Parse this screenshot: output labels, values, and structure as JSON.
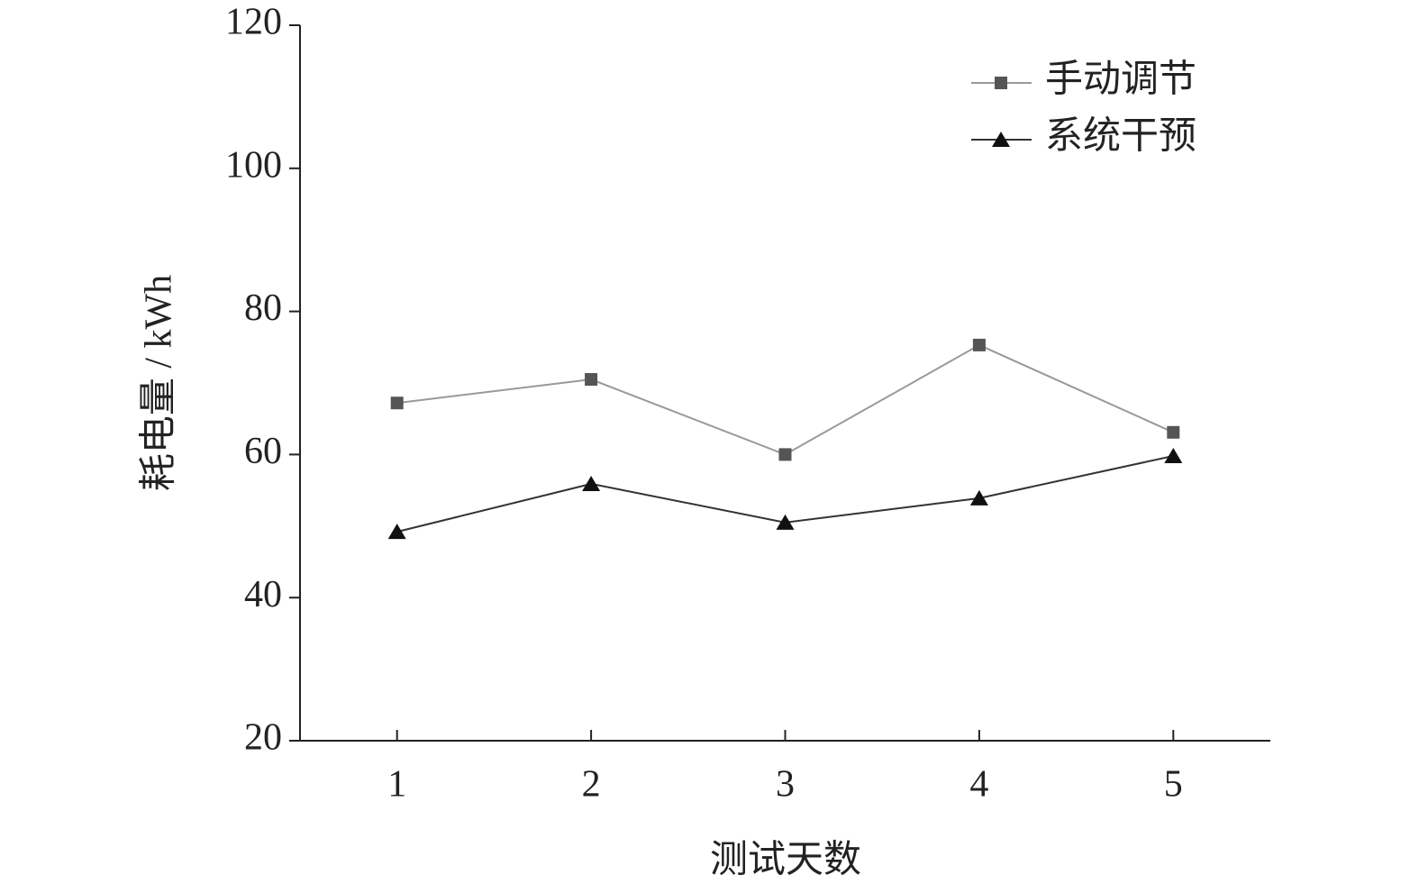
{
  "chart_data": {
    "type": "line",
    "x_label": "测试天数",
    "y_label": "耗电量 / kWh",
    "x": [
      1,
      2,
      3,
      4,
      5
    ],
    "xlim": [
      0.5,
      5.5
    ],
    "xticks": [
      1,
      2,
      3,
      4,
      5
    ],
    "ylim": [
      20,
      120
    ],
    "yticks": [
      20,
      40,
      60,
      80,
      100,
      120
    ],
    "legend": "upper right",
    "series": [
      {
        "name": "手动调节",
        "color": "#999999",
        "marker": "square",
        "marker_color": "#555555",
        "values": [
          67.2,
          70.5,
          60,
          75.3,
          63.1
        ]
      },
      {
        "name": "系统干预",
        "color": "#333333",
        "marker": "triangle",
        "marker_color": "#111111",
        "values": [
          49.2,
          55.9,
          50.5,
          53.9,
          59.8
        ]
      }
    ]
  }
}
